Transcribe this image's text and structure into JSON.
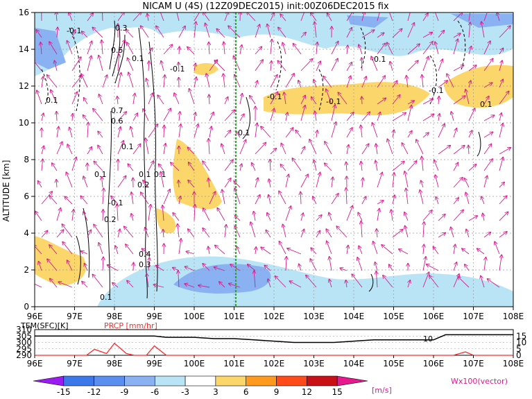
{
  "title": "NICAM U (4S) (12Z09DEC2015) init:00Z06DEC2015 fix",
  "main_plot": {
    "ylabel": "ALTITUDE [km]",
    "y_ticks": [
      "0",
      "2",
      "4",
      "6",
      "8",
      "10",
      "12",
      "14",
      "16"
    ],
    "x_ticks": [
      "96E",
      "97E",
      "98E",
      "99E",
      "100E",
      "101E",
      "102E",
      "103E",
      "104E",
      "105E",
      "106E",
      "107E",
      "108E"
    ],
    "contour_labels": [
      "-0.1",
      "0.1",
      "0.5",
      "0.7",
      "0.3",
      "0.6",
      "-0.1",
      "-0.1",
      "-0.1",
      "-0.1",
      "-0.1",
      "0.1",
      "0.1",
      "0.1",
      "0.2",
      "0.1",
      "0.2",
      "0.1",
      "0.1",
      "-0.1",
      "0.4",
      "0.3",
      "0.1",
      "0.1"
    ]
  },
  "lower_panel": {
    "left_label": "TEM(SFC)[K]",
    "right_label": "PRCP [mm/hr]",
    "left_ticks": [
      "310",
      "305",
      "300",
      "295",
      "290"
    ],
    "right_ticks": [
      "15",
      "10",
      "5",
      "0"
    ],
    "x_ticks": [
      "96E",
      "97E",
      "98E",
      "99E",
      "100E",
      "101E",
      "102E",
      "103E",
      "104E",
      "105E",
      "106E",
      "107E",
      "108E"
    ],
    "annotation": "10"
  },
  "colorbar": {
    "labels": [
      "-15",
      "-12",
      "-9",
      "-6",
      "-3",
      "3",
      "6",
      "9",
      "12",
      "15"
    ],
    "unit": "[m/s]",
    "colors": [
      "#9b1cf2",
      "#3c78ea",
      "#5a8ff0",
      "#8ab2f2",
      "#b9e4f5",
      "#ffffff",
      "#fbd76b",
      "#ff9a1e",
      "#ff4a1a",
      "#c81015",
      "#e8188f"
    ]
  },
  "vector_note": "Wx100(vector)",
  "chart_data": [
    {
      "type": "heatmap",
      "title": "NICAM U (4S) (12Z09DEC2015) init:00Z06DEC2015 fix",
      "xlabel": "",
      "ylabel": "ALTITUDE [km]",
      "x_range": [
        96,
        108
      ],
      "y_range": [
        0,
        16
      ],
      "x_tick_labels": [
        "96E",
        "97E",
        "98E",
        "99E",
        "100E",
        "101E",
        "102E",
        "103E",
        "104E",
        "105E",
        "106E",
        "107E",
        "108E"
      ],
      "y_tick_labels": [
        "0",
        "2",
        "4",
        "6",
        "8",
        "10",
        "12",
        "14",
        "16"
      ],
      "color_levels": [
        -15,
        -12,
        -9,
        -6,
        -3,
        3,
        6,
        9,
        12,
        15
      ],
      "unit": "m/s",
      "grid": true,
      "vertical_line_x": 101
    },
    {
      "type": "line",
      "x": [
        96,
        96.5,
        97,
        97.3,
        97.5,
        97.8,
        98,
        98.3,
        98.5,
        98.8,
        99,
        99.3,
        99.5,
        100,
        100.5,
        101,
        101.5,
        102,
        102.5,
        103,
        103.5,
        104,
        104.5,
        105,
        105.5,
        106,
        106.3,
        106.5,
        106.8,
        107,
        107.5,
        108
      ],
      "series": [
        {
          "name": "TEM(SFC)[K]",
          "values": [
            305,
            305,
            305,
            305,
            305,
            305,
            305,
            305,
            305,
            305,
            305,
            304,
            304,
            304,
            303,
            303,
            302,
            301,
            300,
            300,
            300,
            301,
            302,
            302,
            302,
            302,
            306,
            306,
            306,
            306,
            306,
            306
          ]
        },
        {
          "name": "PRCP [mm/hr]",
          "values": [
            0,
            0,
            0,
            0,
            3.5,
            1,
            7,
            1,
            0,
            0,
            5.5,
            0,
            0,
            0,
            0,
            0,
            0,
            0,
            0,
            0,
            0,
            0,
            0,
            0,
            0,
            0,
            0,
            0,
            2,
            0,
            0,
            0
          ]
        }
      ],
      "left_ylim": [
        290,
        310
      ],
      "right_ylim": [
        0,
        15
      ]
    }
  ]
}
